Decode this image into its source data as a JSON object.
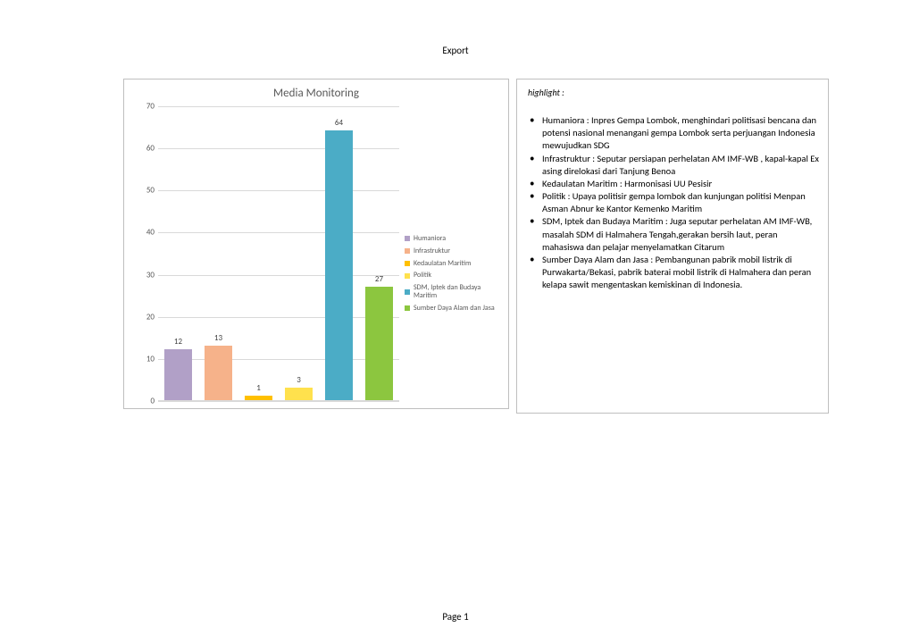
{
  "header": "Export",
  "footer": "Page 1",
  "chart": {
    "title": "Media Monitoring",
    "type": "bar",
    "ylim": [
      0,
      70
    ],
    "ytick_step": 10,
    "gridline_color": "#d9d9d9",
    "background_color": "#ffffff",
    "label_fontsize": 9,
    "title_fontsize": 13,
    "series": [
      {
        "name": "Humaniora",
        "value": 12,
        "color": "#b1a0c7"
      },
      {
        "name": "Infrastruktur",
        "value": 13,
        "color": "#f6b28a"
      },
      {
        "name": "Kedaulatan Maritim",
        "value": 1,
        "color": "#ffc000"
      },
      {
        "name": "Politik",
        "value": 3,
        "color": "#ffe14d"
      },
      {
        "name": "SDM, Iptek dan Budaya Maritim",
        "value": 64,
        "color": "#4bacc6"
      },
      {
        "name": "Sumber Daya Alam dan Jasa",
        "value": 27,
        "color": "#8cc63f"
      }
    ]
  },
  "highlight": {
    "title": "highlight :",
    "items": [
      "Humaniora : Inpres Gempa Lombok, menghindari politisasi bencana dan potensi nasional menangani gempa Lombok serta perjuangan Indonesia mewujudkan SDG",
      "Infrastruktur : Seputar persiapan perhelatan AM IMF-WB , kapal-kapal Ex asing direlokasi dari Tanjung Benoa",
      "Kedaulatan Maritim : Harmonisasi UU Pesisir",
      "Politik : Upaya politisir gempa lombok dan kunjungan politisi Menpan Asman Abnur ke Kantor Kemenko Maritim",
      "SDM, Iptek dan Budaya Maritim : Juga seputar perhelatan AM IMF-WB, masalah SDM di Halmahera Tengah,gerakan bersih laut,  peran mahasiswa dan pelajar menyelamatkan Citarum",
      "Sumber Daya Alam dan Jasa : Pembangunan pabrik mobil listrik di Purwakarta/Bekasi, pabrik baterai mobil listrik di Halmahera dan peran kelapa sawit mengentaskan kemiskinan di Indonesia."
    ]
  }
}
